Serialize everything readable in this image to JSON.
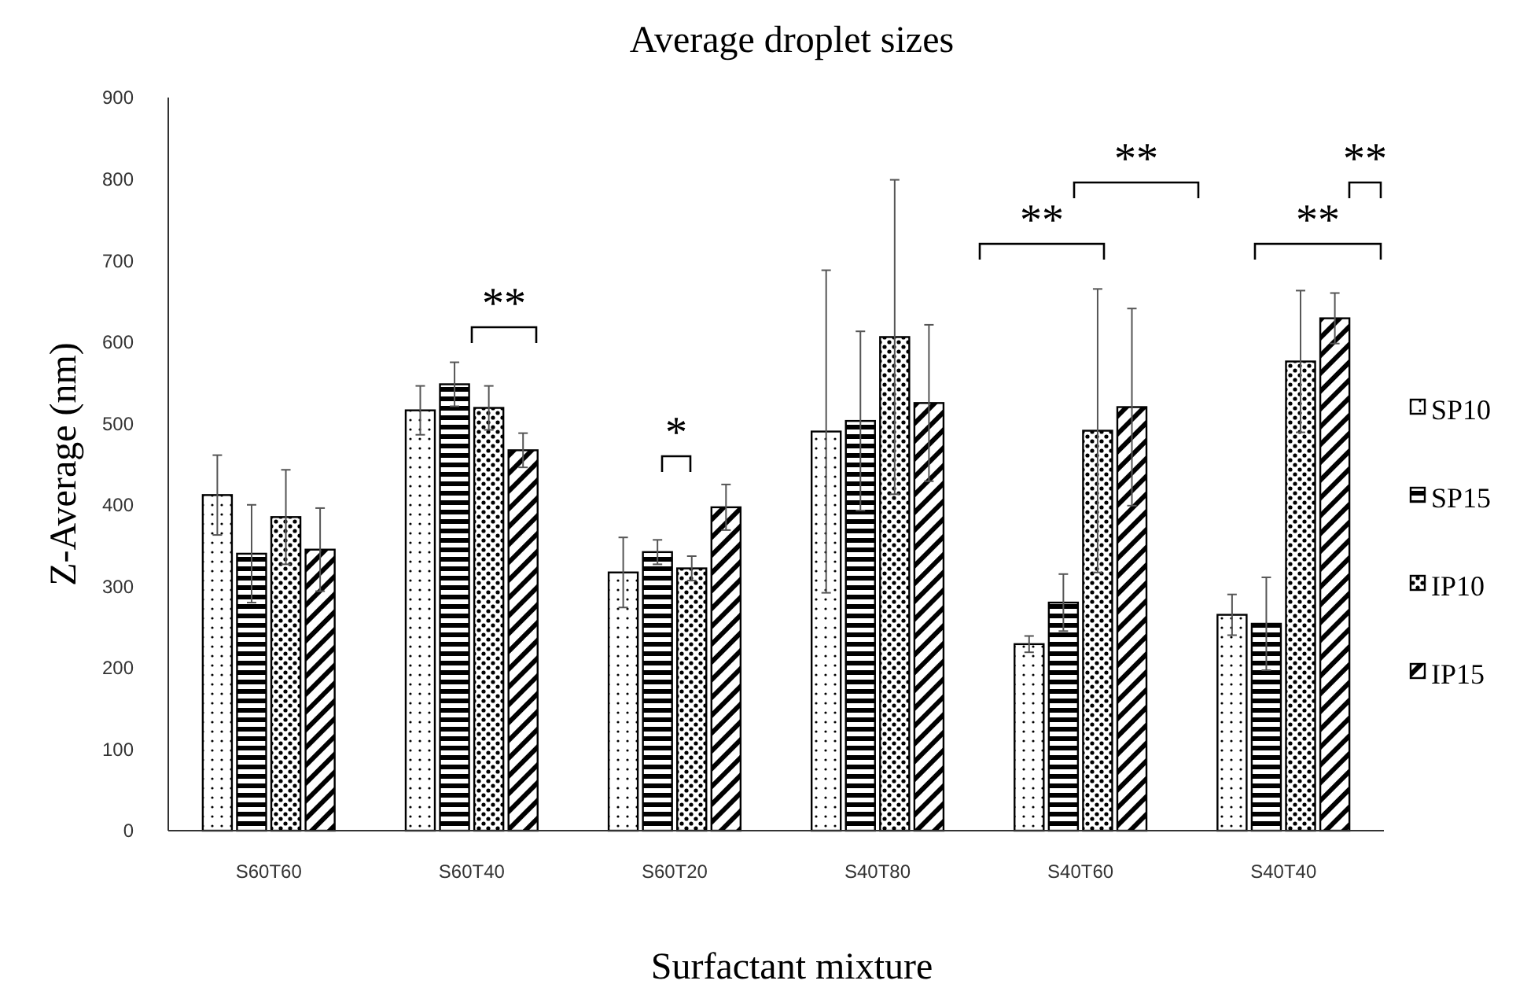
{
  "chart_data": {
    "type": "bar",
    "title": "Average droplet sizes",
    "xlabel": "Surfactant mixture",
    "ylabel": "Z-Average (nm)",
    "categories": [
      "S60T60",
      "S60T40",
      "S60T20",
      "S40T80",
      "S40T60",
      "S40T40"
    ],
    "series": [
      {
        "name": "SP10",
        "color": "#000000",
        "values": [
          412,
          516,
          317,
          490,
          229,
          265
        ],
        "errors": [
          49,
          30,
          43,
          198,
          10,
          25
        ]
      },
      {
        "name": "SP15",
        "color": "#000000",
        "values": [
          340,
          548,
          342,
          503,
          280,
          254
        ],
        "errors": [
          60,
          27,
          15,
          110,
          35,
          57
        ]
      },
      {
        "name": "IP10",
        "color": "#000000",
        "values": [
          385,
          519,
          322,
          606,
          491,
          576
        ],
        "errors": [
          58,
          27,
          15,
          193,
          174,
          87
        ]
      },
      {
        "name": "IP15",
        "color": "#000000",
        "values": [
          345,
          467,
          397,
          525,
          520,
          629
        ],
        "errors": [
          51,
          21,
          28,
          96,
          121,
          31
        ]
      }
    ],
    "ylim": [
      0,
      900
    ],
    "yticks": [
      0,
      100,
      200,
      300,
      400,
      500,
      600,
      700,
      800,
      900
    ],
    "grid": false,
    "legend": "right",
    "annotations": [
      "**",
      "*",
      "**",
      "**",
      "**",
      "**"
    ]
  }
}
